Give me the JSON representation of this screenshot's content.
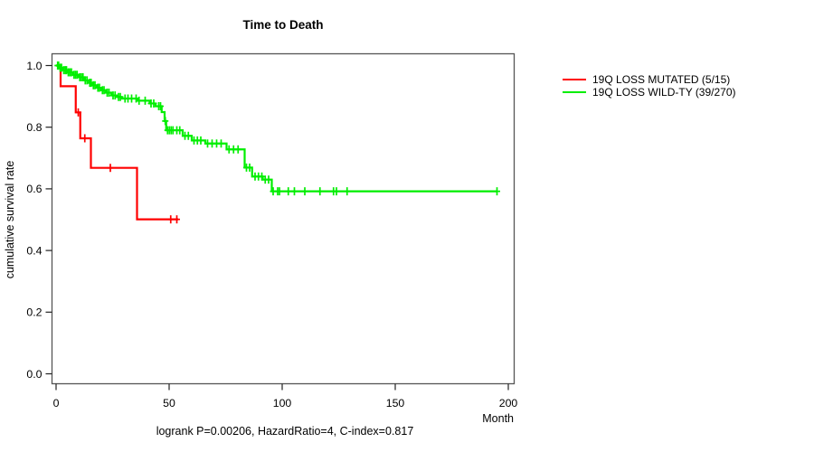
{
  "chart_data": {
    "type": "line",
    "subtype": "kaplan-meier-step",
    "title": "Time to Death",
    "xlabel": "Month",
    "ylabel": "cumulative survival rate",
    "annotation": "logrank P=0.00206, HazardRatio=4, C-index=0.817",
    "xlim": [
      0,
      200
    ],
    "ylim": [
      0.0,
      1.0
    ],
    "grid": false,
    "legend_position": "right-outside",
    "xticks": [
      {
        "m": 0,
        "label": "0"
      },
      {
        "m": 50,
        "label": "50"
      },
      {
        "m": 100,
        "label": "100"
      },
      {
        "m": 150,
        "label": "150"
      },
      {
        "m": 200,
        "label": "200"
      }
    ],
    "yticks": [
      {
        "v": 1.0,
        "label": "1.0"
      },
      {
        "v": 0.8,
        "label": "0.8"
      },
      {
        "v": 0.6,
        "label": "0.6"
      },
      {
        "v": 0.4,
        "label": "0.4"
      },
      {
        "v": 0.2,
        "label": "0.2"
      },
      {
        "v": 0.0,
        "label": "0.0"
      }
    ],
    "series": [
      {
        "name": "19Q LOSS MUTATED (5/15)",
        "color": "#ff0000",
        "events": "5/15",
        "steps": [
          [
            0,
            1.0
          ],
          [
            2,
            0.933
          ],
          [
            8.7,
            0.848
          ],
          [
            10.7,
            0.764
          ],
          [
            15.4,
            0.668
          ],
          [
            35.8,
            0.501
          ]
        ],
        "end_month": 54,
        "censors": [
          [
            9.8,
            0.848
          ],
          [
            12.7,
            0.764
          ],
          [
            24,
            0.668
          ],
          [
            50.7,
            0.501
          ],
          [
            53.4,
            0.501
          ]
        ]
      },
      {
        "name": "19Q LOSS WILD-TY (39/270)",
        "color": "#00ee00",
        "events": "39/270",
        "steps": [
          [
            0,
            1.0
          ],
          [
            1.5,
            0.993
          ],
          [
            3,
            0.985
          ],
          [
            5,
            0.978
          ],
          [
            7.5,
            0.97
          ],
          [
            10,
            0.962
          ],
          [
            12.5,
            0.952
          ],
          [
            14.5,
            0.944
          ],
          [
            16,
            0.936
          ],
          [
            18,
            0.928
          ],
          [
            20,
            0.92
          ],
          [
            22,
            0.912
          ],
          [
            24.5,
            0.903
          ],
          [
            27,
            0.898
          ],
          [
            29,
            0.893
          ],
          [
            36,
            0.886
          ],
          [
            41.4,
            0.877
          ],
          [
            44,
            0.868
          ],
          [
            46.7,
            0.849
          ],
          [
            48,
            0.82
          ],
          [
            48.7,
            0.79
          ],
          [
            56,
            0.772
          ],
          [
            60,
            0.757
          ],
          [
            66,
            0.747
          ],
          [
            75.4,
            0.728
          ],
          [
            83.4,
            0.669
          ],
          [
            86.7,
            0.64
          ],
          [
            91.4,
            0.63
          ],
          [
            95.4,
            0.592
          ]
        ],
        "end_month": 195,
        "censors": [
          [
            0.7,
            1.0
          ],
          [
            1.1,
            1.0
          ],
          [
            1.8,
            0.993
          ],
          [
            2.4,
            0.993
          ],
          [
            3.4,
            0.985
          ],
          [
            4.1,
            0.985
          ],
          [
            4.6,
            0.985
          ],
          [
            5.4,
            0.978
          ],
          [
            6.1,
            0.978
          ],
          [
            6.8,
            0.978
          ],
          [
            7.9,
            0.97
          ],
          [
            8.6,
            0.97
          ],
          [
            9.3,
            0.97
          ],
          [
            10.5,
            0.962
          ],
          [
            11.2,
            0.962
          ],
          [
            11.9,
            0.962
          ],
          [
            12.9,
            0.952
          ],
          [
            13.7,
            0.952
          ],
          [
            14.9,
            0.944
          ],
          [
            15.5,
            0.944
          ],
          [
            16.5,
            0.936
          ],
          [
            17.2,
            0.936
          ],
          [
            18.5,
            0.928
          ],
          [
            19.2,
            0.928
          ],
          [
            20.5,
            0.92
          ],
          [
            21.2,
            0.92
          ],
          [
            22.6,
            0.912
          ],
          [
            23.4,
            0.912
          ],
          [
            25.2,
            0.903
          ],
          [
            26.1,
            0.903
          ],
          [
            27.6,
            0.898
          ],
          [
            28.4,
            0.898
          ],
          [
            30.5,
            0.893
          ],
          [
            31.8,
            0.893
          ],
          [
            33.4,
            0.893
          ],
          [
            35.4,
            0.893
          ],
          [
            36.7,
            0.886
          ],
          [
            39.4,
            0.886
          ],
          [
            42,
            0.877
          ],
          [
            43.2,
            0.877
          ],
          [
            45.4,
            0.868
          ],
          [
            46.2,
            0.868
          ],
          [
            48.3,
            0.82
          ],
          [
            49.3,
            0.79
          ],
          [
            50.1,
            0.79
          ],
          [
            50.9,
            0.79
          ],
          [
            51.7,
            0.79
          ],
          [
            53.4,
            0.79
          ],
          [
            54.7,
            0.79
          ],
          [
            57,
            0.772
          ],
          [
            58.5,
            0.772
          ],
          [
            61,
            0.757
          ],
          [
            62.5,
            0.757
          ],
          [
            64,
            0.757
          ],
          [
            67,
            0.747
          ],
          [
            69,
            0.747
          ],
          [
            71,
            0.747
          ],
          [
            73,
            0.747
          ],
          [
            76.5,
            0.728
          ],
          [
            78.5,
            0.728
          ],
          [
            80.5,
            0.728
          ],
          [
            84.2,
            0.669
          ],
          [
            85.6,
            0.669
          ],
          [
            88,
            0.64
          ],
          [
            89.5,
            0.64
          ],
          [
            91,
            0.64
          ],
          [
            92.5,
            0.63
          ],
          [
            94,
            0.63
          ],
          [
            96,
            0.592
          ],
          [
            98,
            0.592
          ],
          [
            98.8,
            0.592
          ],
          [
            102.7,
            0.592
          ],
          [
            105.4,
            0.592
          ],
          [
            110,
            0.592
          ],
          [
            116.7,
            0.592
          ],
          [
            122.7,
            0.592
          ],
          [
            124,
            0.592
          ],
          [
            128.7,
            0.592
          ],
          [
            195,
            0.592
          ]
        ]
      }
    ],
    "axis_color": "#555555",
    "tick_color": "#222222"
  }
}
